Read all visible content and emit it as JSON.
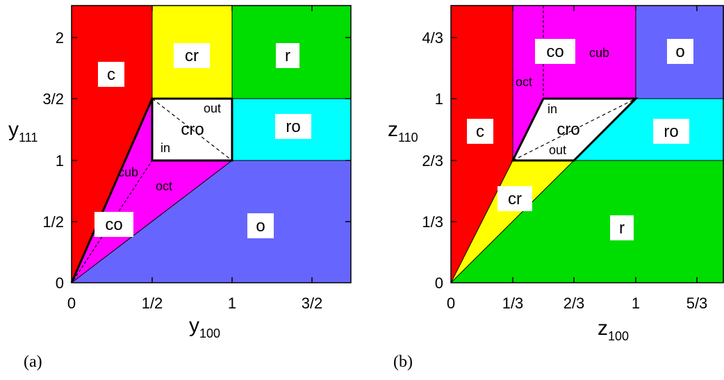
{
  "panel_a": {
    "panel_label": "(a)",
    "x_label": "y",
    "x_label_sub": "100",
    "y_label": "y",
    "y_label_sub": "111",
    "x_ticks": [
      "0",
      "1/2",
      "1",
      "3/2"
    ],
    "y_ticks": [
      "0",
      "1/2",
      "1",
      "3/2",
      "2"
    ],
    "regions": {
      "c": "c",
      "cr": "cr",
      "r": "r",
      "ro": "ro",
      "cro": "cro",
      "o": "o",
      "co": "co"
    },
    "small_labels": {
      "out": "out",
      "in": "in",
      "cub": "cub",
      "oct": "oct"
    },
    "colors": {
      "c": "#ff0000",
      "cr": "#ffff00",
      "r": "#00dd00",
      "ro": "#00ffff",
      "cro": "#ffffff",
      "o": "#6666ff",
      "co": "#ff00ff"
    }
  },
  "panel_b": {
    "panel_label": "(b)",
    "x_label": "z",
    "x_label_sub": "100",
    "y_label": "z",
    "y_label_sub": "110",
    "x_ticks": [
      "0",
      "1/3",
      "2/3",
      "1",
      "5/3"
    ],
    "y_ticks": [
      "0",
      "1/3",
      "2/3",
      "1",
      "4/3"
    ],
    "regions": {
      "c": "c",
      "co": "co",
      "cub": "cub",
      "o": "o",
      "ro": "ro",
      "cro": "cro",
      "cr": "cr",
      "r": "r"
    },
    "small_labels": {
      "oct": "oct",
      "in": "in",
      "out": "out"
    },
    "colors": {
      "c": "#ff0000",
      "co": "#ff00ff",
      "o": "#6666ff",
      "ro": "#00ffff",
      "cro": "#ffffff",
      "cr": "#ffff00",
      "r": "#00dd00"
    }
  }
}
